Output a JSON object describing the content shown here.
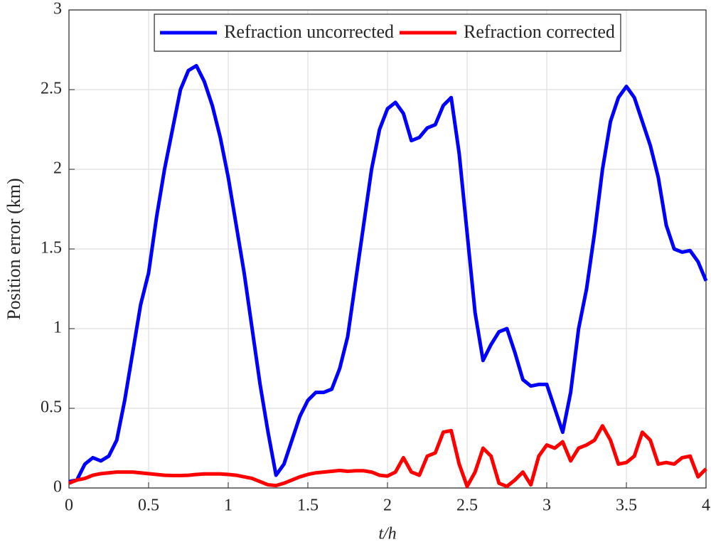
{
  "chart_data": {
    "type": "line",
    "xlabel": "t/h",
    "ylabel": "Position error (km)",
    "x": [
      0,
      0.05,
      0.1,
      0.15,
      0.2,
      0.25,
      0.3,
      0.35,
      0.4,
      0.45,
      0.5,
      0.55,
      0.6,
      0.65,
      0.7,
      0.75,
      0.8,
      0.85,
      0.9,
      0.95,
      1,
      1.05,
      1.1,
      1.15,
      1.2,
      1.25,
      1.3,
      1.35,
      1.4,
      1.45,
      1.5,
      1.55,
      1.6,
      1.65,
      1.7,
      1.75,
      1.8,
      1.85,
      1.9,
      1.95,
      2,
      2.05,
      2.1,
      2.15,
      2.2,
      2.25,
      2.3,
      2.35,
      2.4,
      2.45,
      2.5,
      2.55,
      2.6,
      2.65,
      2.7,
      2.75,
      2.8,
      2.85,
      2.9,
      2.95,
      3,
      3.05,
      3.1,
      3.15,
      3.2,
      3.25,
      3.3,
      3.35,
      3.4,
      3.45,
      3.5,
      3.55,
      3.6,
      3.65,
      3.7,
      3.75,
      3.8,
      3.85,
      3.9,
      3.95,
      4
    ],
    "series": [
      {
        "name": "Refraction uncorrected",
        "color": "#0000ff",
        "values": [
          0.04,
          0.05,
          0.15,
          0.19,
          0.17,
          0.2,
          0.3,
          0.55,
          0.85,
          1.15,
          1.35,
          1.7,
          2.0,
          2.25,
          2.5,
          2.62,
          2.65,
          2.55,
          2.4,
          2.2,
          1.95,
          1.65,
          1.35,
          1.0,
          0.65,
          0.35,
          0.08,
          0.15,
          0.3,
          0.45,
          0.55,
          0.6,
          0.6,
          0.62,
          0.75,
          0.95,
          1.3,
          1.65,
          2.0,
          2.25,
          2.38,
          2.42,
          2.35,
          2.18,
          2.2,
          2.26,
          2.28,
          2.4,
          2.45,
          2.1,
          1.6,
          1.1,
          0.8,
          0.9,
          0.98,
          1.0,
          0.85,
          0.68,
          0.64,
          0.65,
          0.65,
          0.5,
          0.35,
          0.6,
          1.0,
          1.25,
          1.6,
          2.0,
          2.3,
          2.45,
          2.52,
          2.45,
          2.3,
          2.15,
          1.95,
          1.65,
          1.5,
          1.48,
          1.49,
          1.42,
          1.3
        ]
      },
      {
        "name": "Refraction corrected",
        "color": "#ff0000",
        "values": [
          0.03,
          0.05,
          0.06,
          0.08,
          0.09,
          0.095,
          0.1,
          0.1,
          0.1,
          0.095,
          0.09,
          0.085,
          0.08,
          0.078,
          0.078,
          0.08,
          0.085,
          0.088,
          0.088,
          0.088,
          0.085,
          0.08,
          0.07,
          0.06,
          0.04,
          0.02,
          0.015,
          0.03,
          0.05,
          0.07,
          0.085,
          0.095,
          0.1,
          0.105,
          0.11,
          0.105,
          0.108,
          0.108,
          0.1,
          0.08,
          0.075,
          0.1,
          0.19,
          0.1,
          0.08,
          0.2,
          0.22,
          0.35,
          0.36,
          0.15,
          0.01,
          0.1,
          0.25,
          0.2,
          0.03,
          0.01,
          0.05,
          0.1,
          0.02,
          0.2,
          0.27,
          0.25,
          0.29,
          0.17,
          0.25,
          0.27,
          0.3,
          0.39,
          0.3,
          0.15,
          0.16,
          0.2,
          0.35,
          0.3,
          0.15,
          0.16,
          0.15,
          0.19,
          0.2,
          0.07,
          0.12
        ]
      }
    ],
    "xlim": [
      0,
      4
    ],
    "ylim": [
      0,
      3
    ],
    "xticks": [
      0,
      0.5,
      1,
      1.5,
      2,
      2.5,
      3,
      3.5,
      4
    ],
    "yticks": [
      0,
      0.5,
      1,
      1.5,
      2,
      2.5,
      3
    ],
    "grid": true,
    "legend": "top"
  }
}
